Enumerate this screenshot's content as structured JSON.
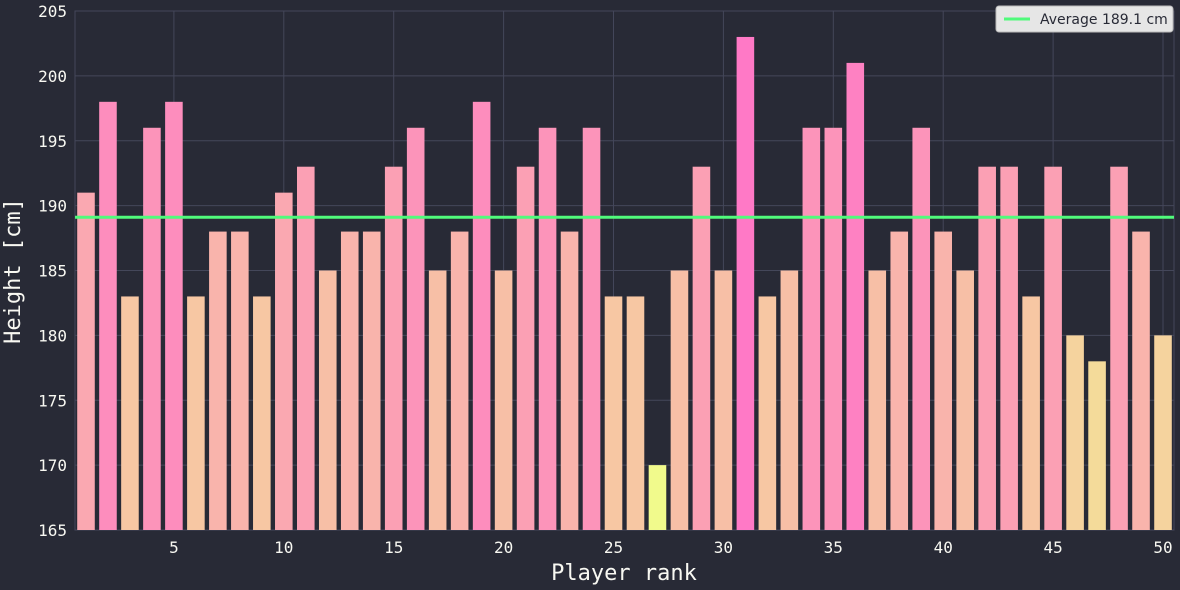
{
  "chart_data": {
    "type": "bar",
    "title": "",
    "xlabel": "Player rank",
    "ylabel": "Height [cm]",
    "ylim": [
      165,
      205
    ],
    "xlim": [
      0.5,
      50.5
    ],
    "grid": true,
    "x_ticks": [
      5,
      10,
      15,
      20,
      25,
      30,
      35,
      40,
      45,
      50
    ],
    "y_ticks": [
      165,
      170,
      175,
      180,
      185,
      190,
      195,
      200,
      205
    ],
    "x": [
      1,
      2,
      3,
      4,
      5,
      6,
      7,
      8,
      9,
      10,
      11,
      12,
      13,
      14,
      15,
      16,
      17,
      18,
      19,
      20,
      21,
      22,
      23,
      24,
      25,
      26,
      27,
      28,
      29,
      30,
      31,
      32,
      33,
      34,
      35,
      36,
      37,
      38,
      39,
      40,
      41,
      42,
      43,
      44,
      45,
      46,
      47,
      48,
      49,
      50
    ],
    "values": [
      191,
      198,
      183,
      196,
      198,
      183,
      188,
      188,
      183,
      191,
      193,
      185,
      188,
      188,
      193,
      196,
      185,
      188,
      198,
      185,
      193,
      196,
      188,
      196,
      183,
      183,
      170,
      185,
      193,
      185,
      203,
      183,
      185,
      196,
      196,
      201,
      185,
      188,
      196,
      188,
      185,
      193,
      193,
      183,
      193,
      180,
      178,
      193,
      188,
      180
    ],
    "color_scale": {
      "low": "#f1fa8c",
      "high": "#ff79c6"
    },
    "reference_line": {
      "value": 189.1,
      "label": "Average 189.1 cm",
      "color": "#50fa7b"
    },
    "legend": {
      "position": "top-right",
      "entries": [
        "Average 189.1 cm"
      ]
    }
  },
  "colors": {
    "background": "#282a36",
    "grid": "#44475a",
    "text": "#f8f8f2",
    "legend_bg": "#e6e6e6"
  }
}
